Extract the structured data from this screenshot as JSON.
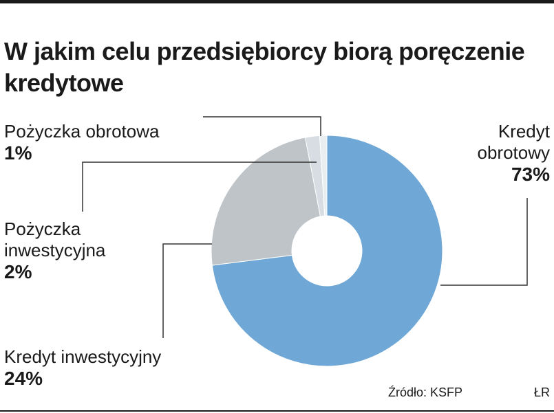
{
  "title": "W jakim celu przedsiębiorcy biorą poręczenie kredytowe",
  "source": "Źródło: KSFP",
  "credit": "ŁR",
  "labels": [
    {
      "name": "Pożyczka obrotowa",
      "pct": "1%"
    },
    {
      "name": "Pożyczka inwestycyjna",
      "pct": "2%"
    },
    {
      "name": "Kredyt inwestycyjny",
      "pct": "24%"
    },
    {
      "name": "Kredyt obrotowy",
      "pct": "73%"
    }
  ],
  "chart_data": {
    "type": "pie",
    "style": "donut",
    "title": "W jakim celu przedsiębiorcy biorą poręczenie kredytowe",
    "categories": [
      "Kredyt obrotowy",
      "Kredyt inwestycyjny",
      "Pożyczka inwestycyjna",
      "Pożyczka obrotowa"
    ],
    "values": [
      73,
      24,
      2,
      1
    ],
    "unit": "%",
    "colors": [
      "#6fa8d6",
      "#bfc4c8",
      "#d7dde2",
      "#e9eef1"
    ]
  }
}
